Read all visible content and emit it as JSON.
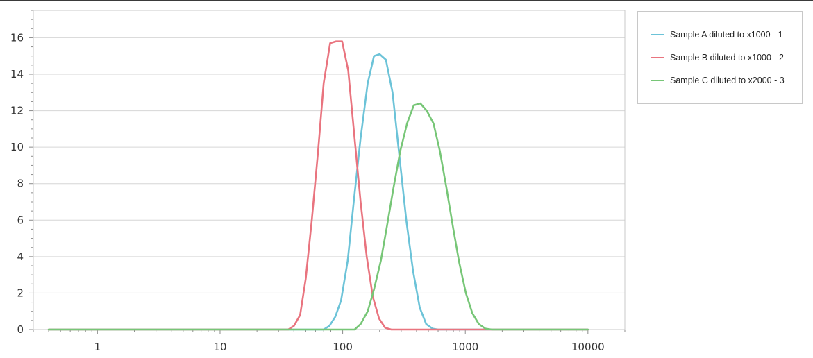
{
  "chart_data": {
    "type": "line",
    "x_scale": "log",
    "xlim": [
      0.3,
      20000
    ],
    "ylim": [
      0,
      17.5
    ],
    "x_ticks": [
      1,
      10,
      100,
      1000,
      10000
    ],
    "x_tick_labels": [
      "1",
      "10",
      "100",
      "1000",
      "10000"
    ],
    "y_ticks": [
      0,
      2,
      4,
      6,
      8,
      10,
      12,
      14,
      16
    ],
    "y_tick_labels": [
      "0",
      "2",
      "4",
      "6",
      "8",
      "10",
      "12",
      "14",
      "16"
    ],
    "grid": "horizontal",
    "legend_position": "top-right",
    "title": "",
    "xlabel": "",
    "ylabel": "",
    "series": [
      {
        "name": "Sample A diluted to x1000 - 1",
        "color": "#6cc3d8",
        "x": [
          0.4,
          70,
          78,
          87,
          97,
          110,
          123,
          140,
          160,
          180,
          200,
          225,
          255,
          290,
          330,
          375,
          425,
          480,
          540,
          600,
          700,
          10000
        ],
        "y": [
          0,
          0,
          0.2,
          0.7,
          1.6,
          3.8,
          7.0,
          10.5,
          13.5,
          15.0,
          15.1,
          14.8,
          13.0,
          9.5,
          6.0,
          3.2,
          1.2,
          0.3,
          0.05,
          0,
          0,
          0
        ]
      },
      {
        "name": "Sample B diluted to x1000 - 2",
        "color": "#e9747f",
        "x": [
          0.4,
          36,
          40,
          45,
          50,
          56,
          63,
          70,
          79,
          88,
          99,
          111,
          125,
          140,
          157,
          176,
          198,
          222,
          249,
          280,
          320,
          10000
        ],
        "y": [
          0,
          0,
          0.2,
          0.8,
          2.8,
          6.0,
          9.8,
          13.5,
          15.7,
          15.8,
          15.8,
          14.2,
          10.5,
          7.0,
          4.0,
          1.8,
          0.6,
          0.1,
          0,
          0,
          0,
          0
        ]
      },
      {
        "name": "Sample C diluted to x2000 - 3",
        "color": "#77c677",
        "x": [
          0.4,
          125,
          140,
          160,
          180,
          205,
          230,
          260,
          295,
          335,
          380,
          430,
          485,
          550,
          620,
          700,
          790,
          890,
          1010,
          1140,
          1290,
          1460,
          1650,
          10000
        ],
        "y": [
          0,
          0,
          0.3,
          1.0,
          2.2,
          3.8,
          5.7,
          7.8,
          9.8,
          11.3,
          12.3,
          12.4,
          12.0,
          11.3,
          9.8,
          7.8,
          5.7,
          3.7,
          2.0,
          0.9,
          0.3,
          0.05,
          0,
          0
        ]
      }
    ]
  }
}
